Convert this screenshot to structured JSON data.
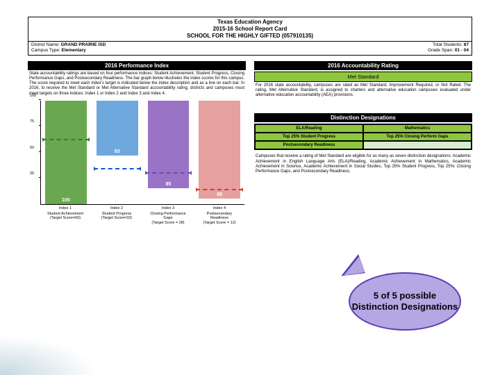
{
  "header": {
    "line1": "Texas Education Agency",
    "line2": "2015-16 School Report Card",
    "line3": "SCHOOL FOR THE HIGHLY GIFTED (057910135)"
  },
  "meta": {
    "left": [
      {
        "label": "District Name:",
        "value": "GRAND PRAIRIE ISD"
      },
      {
        "label": "Campus Type:",
        "value": "Elementary"
      }
    ],
    "right": [
      {
        "label": "Total Students:",
        "value": "87"
      },
      {
        "label": "Grade Span:",
        "value": "01 - 04"
      }
    ]
  },
  "left_col": {
    "title": "2016 Performance Index",
    "text": "State accountability ratings are based on four performance indices: Student Achievement, Student Progress, Closing Performance Gaps, and Postsecondary Readiness. The bar graph below illustrates the index scores for this campus. The score required to meet each index's target is indicated below the index description and as a line on each bar. In 2016, to receive the Met Standard or Met Alternative Standard accountability rating, districts and campuses must meet targets on three indices: Index 1 or Index 2 and Index 3 and Index 4.",
    "chart": {
      "ymax": 100,
      "yticks": [
        25,
        50,
        75,
        100
      ],
      "bars": [
        {
          "index": "Index 1",
          "name": "Student Achievement",
          "target_label": "(Target Score=60)",
          "value": 100,
          "target": 60,
          "fill": "#6aa84f",
          "dash": "#2e7d32"
        },
        {
          "index": "Index 2",
          "name": "Student Progress",
          "target_label": "(Target Score=32)",
          "value": 53,
          "target": 32,
          "fill": "#6fa8dc",
          "dash": "#1155cc"
        },
        {
          "index": "Index 3",
          "name": "Closing Performance Gaps",
          "target_label": "(Target Score = 28)",
          "value": 85,
          "target": 28,
          "fill": "#9a72c6",
          "dash": "#674ea7"
        },
        {
          "index": "Index 4",
          "name": "Postsecondary Readiness",
          "target_label": "(Target Score = 12)",
          "value": 95,
          "target": 12,
          "fill": "#e6a0a0",
          "dash": "#cc4125"
        }
      ]
    }
  },
  "right_col": {
    "acc_title": "2016 Accountability Rating",
    "acc_box": "Met Standard",
    "acc_text": "For 2016 state accountability, campuses are rated as Met Standard, Improvement Required, or Not Rated. The rating, Met Alternative Standard, is assigned to charters and alternative education campuses evaluated under alternative education accountability (AEA) provisions.",
    "dd_title": "Distinction Designations",
    "dd_cells": [
      "ELA/Reading",
      "Mathematics",
      "Top 25% Student Progress",
      "Top 25% Closing Perform Gaps",
      "Postsecondary Readiness",
      ""
    ],
    "dd_text": "Campuses that receive a rating of Met Standard are eligible for as many as seven distinction designations: Academic Achievement in English Language Arts (ELA)/Reading, Academic Achievement in Mathematics, Academic Achievement in Science, Academic Achievement in Social Studies, Top 25% Student Progress, Top 25%: Closing Performance Gaps, and Postsecondary Readiness."
  },
  "callout": {
    "text": "5 of 5 possible Distinction Designations",
    "fill": "#b4a7e3",
    "border": "#5b3db3"
  }
}
